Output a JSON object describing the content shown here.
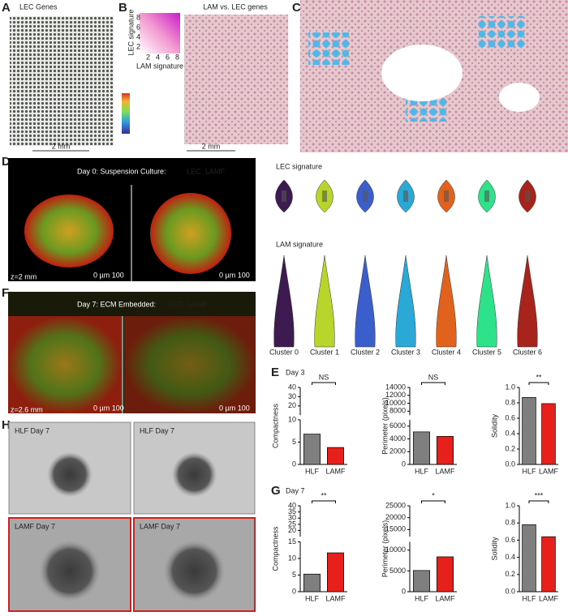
{
  "panels": {
    "A": {
      "label": "A",
      "title": "LEC Genes",
      "scale": "2 mm"
    },
    "B": {
      "label": "B",
      "title": "LAM vs. LEC genes",
      "y_axis": "LEC signature",
      "x_axis": "LAM signature",
      "x_ticks": [
        "2",
        "4",
        "6",
        "8"
      ],
      "y_ticks": [
        "8",
        "6",
        "4",
        "2"
      ],
      "scale": "2 mm"
    },
    "C": {
      "label": "C"
    },
    "D": {
      "label": "D",
      "title": "Day 0: Suspension Culture:",
      "channel_red": "LEC",
      "channel_green": "LAMF",
      "depth": "z=2 mm",
      "scale": "0   µm   100"
    },
    "F": {
      "label": "F",
      "title": "Day 7: ECM Embedded:",
      "channel_red": "LEC",
      "channel_green": "LAMF",
      "depth": "z=2.6 mm",
      "scale": "0   µm   100"
    },
    "H": {
      "label": "H",
      "images": [
        "HLF Day 7",
        "HLF Day 7",
        "LAMF Day 7",
        "LAMF Day 7"
      ]
    },
    "violin": {
      "title_top": "LEC signature",
      "title_bottom": "LAM signature",
      "clusters": [
        "Cluster 0",
        "Cluster 1",
        "Cluster 2",
        "Cluster 3",
        "Cluster 4",
        "Cluster 5",
        "Cluster 6"
      ]
    },
    "E": {
      "label": "E",
      "title": "Day 3",
      "charts": [
        {
          "type": "bar",
          "ylabel": "Compactness",
          "categories": [
            "HLF",
            "LAMF"
          ],
          "values": [
            6.8,
            3.8
          ],
          "colors": [
            "#7f7f7f",
            "#e8201c"
          ],
          "significance": "NS",
          "segments": [
            {
              "ylim": [
                0,
                10
              ],
              "yticks": [
                0,
                5,
                10
              ]
            },
            {
              "ylim": [
                10,
                40
              ],
              "yticks": [
                20,
                30,
                40
              ]
            }
          ]
        },
        {
          "type": "bar",
          "ylabel": "Perimeter (pixels)",
          "categories": [
            "HLF",
            "LAMF"
          ],
          "values": [
            5100,
            4400
          ],
          "colors": [
            "#7f7f7f",
            "#e8201c"
          ],
          "significance": "NS",
          "segments": [
            {
              "ylim": [
                0,
                7000
              ],
              "yticks": [
                0,
                2000,
                4000,
                6000
              ]
            },
            {
              "ylim": [
                7000,
                14000
              ],
              "yticks": [
                8000,
                10000,
                12000,
                14000
              ]
            }
          ]
        },
        {
          "type": "bar",
          "ylabel": "Solidity",
          "categories": [
            "HLF",
            "LAMF"
          ],
          "values": [
            0.87,
            0.79
          ],
          "colors": [
            "#7f7f7f",
            "#e8201c"
          ],
          "significance": "**",
          "segments": [
            {
              "ylim": [
                0,
                1
              ],
              "yticks": [
                {
                  "value": 0,
                  "label": "0.0"
                },
                0.2,
                0.4,
                0.6,
                0.8,
                {
                  "value": 1,
                  "label": "1.0"
                }
              ]
            }
          ]
        }
      ]
    },
    "G": {
      "label": "G",
      "title": "Day 7",
      "charts": [
        {
          "type": "bar",
          "ylabel": "Compactness",
          "categories": [
            "HLF",
            "LAMF"
          ],
          "values": [
            5.3,
            11.7
          ],
          "colors": [
            "#7f7f7f",
            "#e8201c"
          ],
          "significance": "**",
          "segments": [
            {
              "ylim": [
                0,
                15
              ],
              "yticks": [
                0,
                5,
                10,
                15
              ]
            },
            {
              "ylim": [
                15,
                40
              ],
              "yticks": [
                20,
                25,
                30,
                35,
                40
              ]
            }
          ]
        },
        {
          "type": "bar",
          "ylabel": "Perimeter (pixels)",
          "categories": [
            "HLF",
            "LAMF"
          ],
          "values": [
            5100,
            8400
          ],
          "colors": [
            "#7f7f7f",
            "#e8201c"
          ],
          "significance": "*",
          "segments": [
            {
              "ylim": [
                0,
                12000
              ],
              "yticks": [
                0,
                5000,
                10000
              ]
            },
            {
              "ylim": [
                12000,
                25000
              ],
              "yticks": [
                15000,
                20000,
                25000
              ]
            }
          ]
        },
        {
          "type": "bar",
          "ylabel": "Solidity",
          "categories": [
            "HLF",
            "LAMF"
          ],
          "values": [
            0.78,
            0.64
          ],
          "colors": [
            "#7f7f7f",
            "#e8201c"
          ],
          "significance": "***",
          "segments": [
            {
              "ylim": [
                0,
                1
              ],
              "yticks": [
                {
                  "value": 0,
                  "label": "0.0"
                },
                0.2,
                0.4,
                0.6,
                0.8,
                {
                  "value": 1,
                  "label": "1.0"
                }
              ]
            }
          ]
        }
      ]
    }
  }
}
